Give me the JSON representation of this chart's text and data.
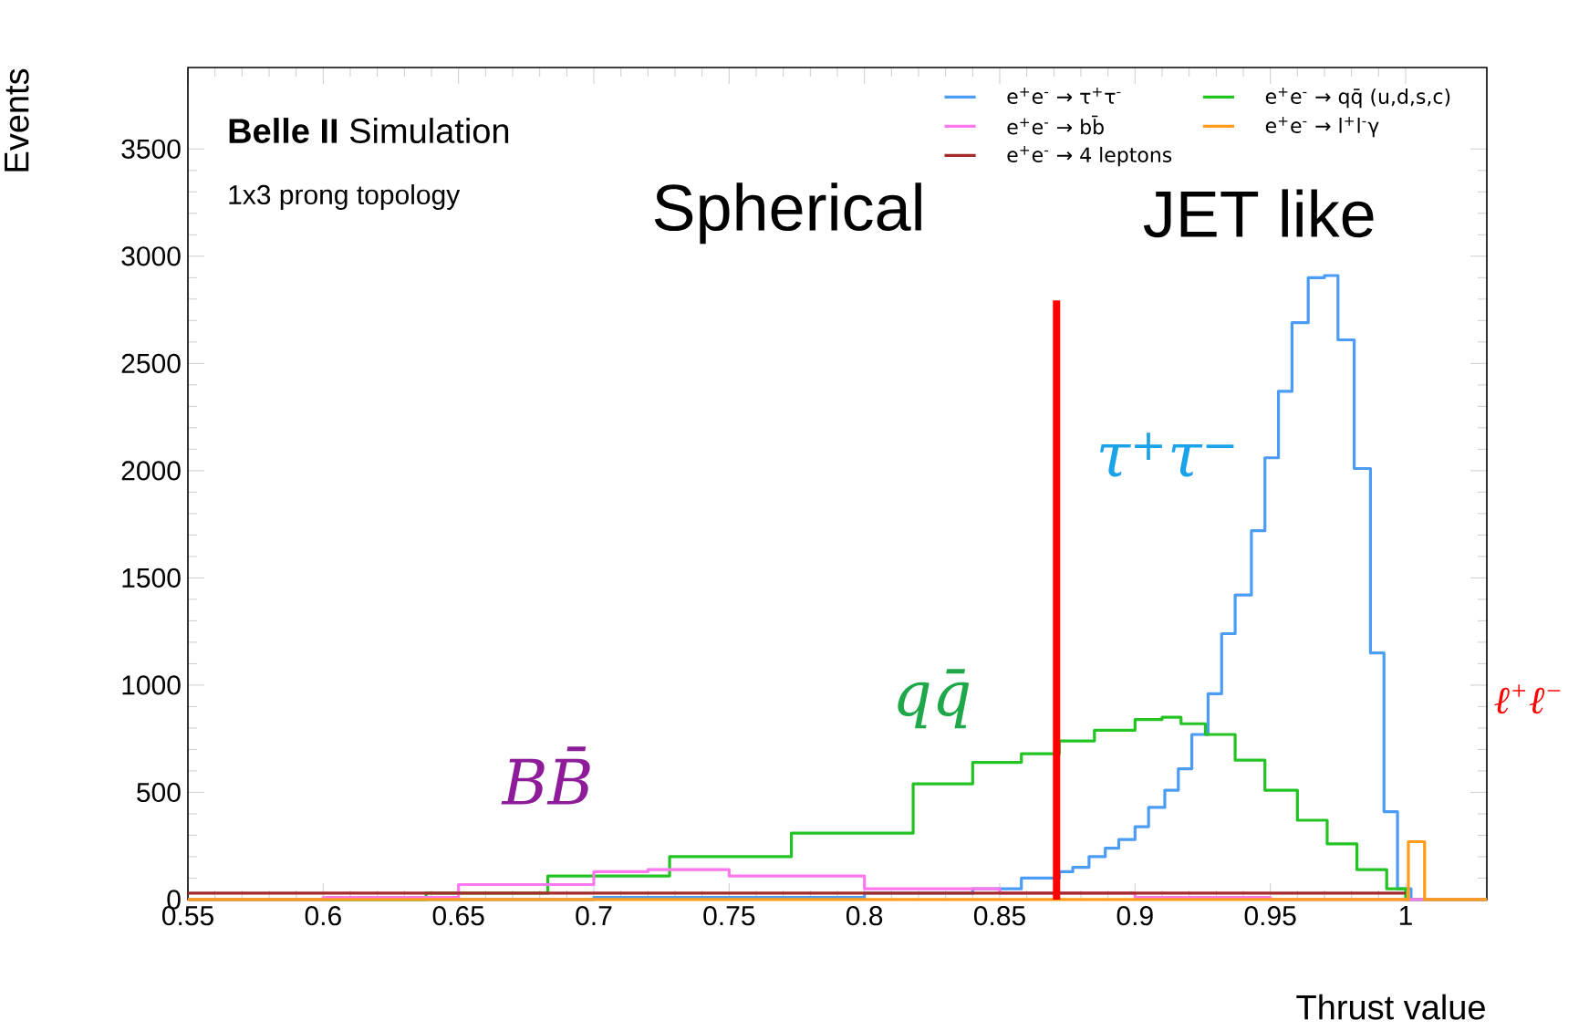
{
  "chart_data": {
    "type": "step",
    "title": "**Belle II** Simulation",
    "subtitle": "1x3 prong topology",
    "xlabel": "Thrust value",
    "ylabel": "Events",
    "xlim": [
      0.55,
      1.03
    ],
    "ylim": [
      0,
      3880
    ],
    "xticks": [
      0.55,
      0.6,
      0.65,
      0.7,
      0.75,
      0.8,
      0.85,
      0.9,
      0.95,
      1
    ],
    "yticks": [
      0,
      500,
      1000,
      1500,
      2000,
      2500,
      3000,
      3500
    ],
    "legend": "top right",
    "series": [
      {
        "name": "e$^{+}$e$^{-}$ → τ$^{+}$τ$^{-}$",
        "color": "#4a9cf5",
        "x": [
          0.55,
          0.65,
          0.7,
          0.75,
          0.8,
          0.84,
          0.858,
          0.872,
          0.877,
          0.883,
          0.889,
          0.894,
          0.9,
          0.905,
          0.911,
          0.916,
          0.921,
          0.927,
          0.932,
          0.937,
          0.943,
          0.948,
          0.953,
          0.958,
          0.964,
          0.97,
          0.975,
          0.981,
          0.987,
          0.992,
          0.997,
          1.002,
          1.03
        ],
        "values": [
          0,
          0,
          10,
          10,
          30,
          50,
          100,
          130,
          150,
          200,
          240,
          280,
          340,
          430,
          510,
          610,
          770,
          960,
          1240,
          1420,
          1720,
          2060,
          2370,
          2690,
          2900,
          2910,
          2610,
          2010,
          1150,
          410,
          50,
          0,
          0
        ]
      },
      {
        "name": "e$^{+}$e$^{-}$ → qq̄ (u,d,s,c)",
        "color": "#22c322",
        "x": [
          0.55,
          0.602,
          0.638,
          0.683,
          0.728,
          0.773,
          0.818,
          0.84,
          0.858,
          0.872,
          0.885,
          0.9,
          0.91,
          0.917,
          0.926,
          0.937,
          0.948,
          0.96,
          0.971,
          0.982,
          0.993,
          1.0,
          1.03
        ],
        "values": [
          0,
          0,
          30,
          110,
          200,
          310,
          540,
          640,
          680,
          740,
          790,
          840,
          850,
          820,
          770,
          650,
          510,
          370,
          260,
          140,
          50,
          0,
          0
        ]
      },
      {
        "name": "e$^{+}$e$^{-}$ → bb̄",
        "color": "#ff77ee",
        "x": [
          0.55,
          0.6,
          0.65,
          0.7,
          0.72,
          0.75,
          0.8,
          0.85,
          0.9,
          0.95,
          1.0,
          1.03
        ],
        "values": [
          0,
          10,
          70,
          130,
          140,
          110,
          50,
          30,
          10,
          0,
          0,
          0
        ]
      },
      {
        "name": "e$^{+}$e$^{-}$ → l$^{+}$l$^{-}$γ",
        "color": "#ff9c1a",
        "x": [
          0.55,
          1.001,
          1.007,
          1.03
        ],
        "values": [
          0,
          270,
          0,
          0
        ]
      },
      {
        "name": "e$^{+}$e$^{-}$ → 4 leptons",
        "color": "#a52a2a",
        "x": [
          0.55,
          0.8,
          1.0
        ],
        "values": [
          30,
          30,
          30
        ]
      }
    ],
    "ref_lines": [
      {
        "axis": "x",
        "value": 0.871,
        "color": "#ff0000"
      }
    ],
    "annotations": [
      "Spherical",
      "JET like",
      "τ$^{+}$τ$^{−}$",
      "qq̄",
      "BB̄",
      "ℓ$^{+}$ℓ$^{−}$"
    ]
  }
}
